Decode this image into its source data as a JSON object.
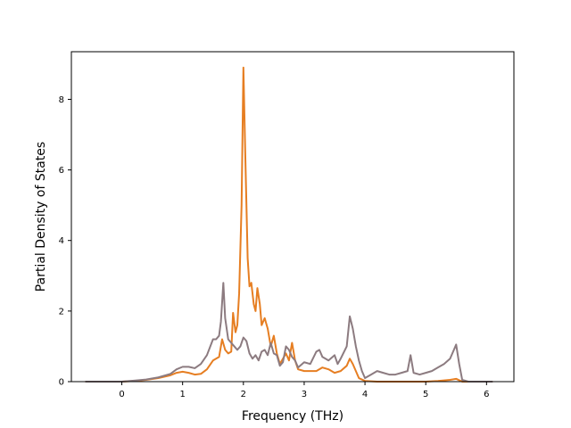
{
  "chart_data": {
    "type": "line",
    "title": "",
    "xlabel": "Frequency (THz)",
    "ylabel": "Partial Density of States",
    "xlim": [
      -0.83,
      6.45
    ],
    "ylim": [
      0,
      9.35
    ],
    "xticks": [
      0,
      1,
      2,
      3,
      4,
      5,
      6
    ],
    "yticks": [
      0,
      2,
      4,
      6,
      8
    ],
    "grid": false,
    "legend": "none",
    "series": [
      {
        "color": "#e67e22",
        "points": [
          [
            -0.6,
            0.0
          ],
          [
            -0.3,
            0.0
          ],
          [
            0.0,
            0.0
          ],
          [
            0.2,
            0.02
          ],
          [
            0.4,
            0.05
          ],
          [
            0.6,
            0.1
          ],
          [
            0.8,
            0.18
          ],
          [
            0.9,
            0.25
          ],
          [
            1.0,
            0.28
          ],
          [
            1.1,
            0.25
          ],
          [
            1.2,
            0.2
          ],
          [
            1.3,
            0.22
          ],
          [
            1.4,
            0.35
          ],
          [
            1.5,
            0.6
          ],
          [
            1.6,
            0.7
          ],
          [
            1.65,
            1.2
          ],
          [
            1.7,
            0.9
          ],
          [
            1.75,
            0.8
          ],
          [
            1.8,
            0.85
          ],
          [
            1.83,
            1.95
          ],
          [
            1.87,
            1.4
          ],
          [
            1.9,
            1.6
          ],
          [
            1.93,
            2.5
          ],
          [
            1.97,
            5.0
          ],
          [
            2.0,
            8.9
          ],
          [
            2.03,
            6.5
          ],
          [
            2.07,
            3.5
          ],
          [
            2.1,
            2.7
          ],
          [
            2.13,
            2.8
          ],
          [
            2.17,
            2.2
          ],
          [
            2.2,
            2.0
          ],
          [
            2.23,
            2.65
          ],
          [
            2.27,
            2.2
          ],
          [
            2.3,
            1.6
          ],
          [
            2.35,
            1.8
          ],
          [
            2.4,
            1.5
          ],
          [
            2.45,
            1.0
          ],
          [
            2.5,
            1.3
          ],
          [
            2.55,
            0.8
          ],
          [
            2.6,
            0.5
          ],
          [
            2.7,
            0.8
          ],
          [
            2.75,
            0.6
          ],
          [
            2.8,
            1.1
          ],
          [
            2.85,
            0.6
          ],
          [
            2.9,
            0.35
          ],
          [
            3.0,
            0.3
          ],
          [
            3.1,
            0.3
          ],
          [
            3.2,
            0.3
          ],
          [
            3.3,
            0.4
          ],
          [
            3.4,
            0.35
          ],
          [
            3.5,
            0.25
          ],
          [
            3.6,
            0.3
          ],
          [
            3.7,
            0.45
          ],
          [
            3.75,
            0.65
          ],
          [
            3.8,
            0.5
          ],
          [
            3.85,
            0.3
          ],
          [
            3.9,
            0.1
          ],
          [
            4.0,
            0.02
          ],
          [
            4.2,
            0.0
          ],
          [
            4.5,
            0.0
          ],
          [
            4.8,
            0.0
          ],
          [
            5.0,
            0.0
          ],
          [
            5.2,
            0.02
          ],
          [
            5.4,
            0.05
          ],
          [
            5.5,
            0.08
          ],
          [
            5.55,
            0.04
          ],
          [
            5.6,
            0.0
          ],
          [
            6.0,
            0.0
          ],
          [
            6.1,
            0.0
          ]
        ]
      },
      {
        "color": "#8c7b80",
        "points": [
          [
            -0.6,
            0.0
          ],
          [
            -0.3,
            0.0
          ],
          [
            0.0,
            0.0
          ],
          [
            0.2,
            0.03
          ],
          [
            0.4,
            0.06
          ],
          [
            0.6,
            0.12
          ],
          [
            0.8,
            0.22
          ],
          [
            0.9,
            0.35
          ],
          [
            1.0,
            0.42
          ],
          [
            1.1,
            0.42
          ],
          [
            1.2,
            0.38
          ],
          [
            1.3,
            0.5
          ],
          [
            1.4,
            0.75
          ],
          [
            1.5,
            1.2
          ],
          [
            1.55,
            1.2
          ],
          [
            1.6,
            1.3
          ],
          [
            1.63,
            1.7
          ],
          [
            1.67,
            2.8
          ],
          [
            1.7,
            1.8
          ],
          [
            1.75,
            1.2
          ],
          [
            1.8,
            1.1
          ],
          [
            1.85,
            1.0
          ],
          [
            1.9,
            0.9
          ],
          [
            1.95,
            1.0
          ],
          [
            2.0,
            1.25
          ],
          [
            2.05,
            1.15
          ],
          [
            2.1,
            0.8
          ],
          [
            2.15,
            0.65
          ],
          [
            2.2,
            0.75
          ],
          [
            2.25,
            0.6
          ],
          [
            2.3,
            0.85
          ],
          [
            2.35,
            0.9
          ],
          [
            2.4,
            0.75
          ],
          [
            2.45,
            1.1
          ],
          [
            2.5,
            0.8
          ],
          [
            2.55,
            0.75
          ],
          [
            2.6,
            0.45
          ],
          [
            2.65,
            0.55
          ],
          [
            2.7,
            1.0
          ],
          [
            2.75,
            0.9
          ],
          [
            2.8,
            0.7
          ],
          [
            2.85,
            0.6
          ],
          [
            2.9,
            0.4
          ],
          [
            3.0,
            0.55
          ],
          [
            3.1,
            0.5
          ],
          [
            3.2,
            0.85
          ],
          [
            3.25,
            0.9
          ],
          [
            3.3,
            0.7
          ],
          [
            3.4,
            0.6
          ],
          [
            3.5,
            0.75
          ],
          [
            3.55,
            0.5
          ],
          [
            3.6,
            0.65
          ],
          [
            3.7,
            1.0
          ],
          [
            3.75,
            1.85
          ],
          [
            3.8,
            1.5
          ],
          [
            3.85,
            1.0
          ],
          [
            3.9,
            0.6
          ],
          [
            3.95,
            0.3
          ],
          [
            4.0,
            0.1
          ],
          [
            4.1,
            0.2
          ],
          [
            4.2,
            0.3
          ],
          [
            4.3,
            0.25
          ],
          [
            4.4,
            0.2
          ],
          [
            4.5,
            0.2
          ],
          [
            4.6,
            0.25
          ],
          [
            4.7,
            0.3
          ],
          [
            4.75,
            0.75
          ],
          [
            4.8,
            0.25
          ],
          [
            4.9,
            0.2
          ],
          [
            5.0,
            0.25
          ],
          [
            5.1,
            0.3
          ],
          [
            5.2,
            0.4
          ],
          [
            5.3,
            0.5
          ],
          [
            5.4,
            0.65
          ],
          [
            5.5,
            1.05
          ],
          [
            5.55,
            0.5
          ],
          [
            5.6,
            0.05
          ],
          [
            5.7,
            0.0
          ],
          [
            6.0,
            0.0
          ],
          [
            6.1,
            0.0
          ]
        ]
      }
    ]
  }
}
